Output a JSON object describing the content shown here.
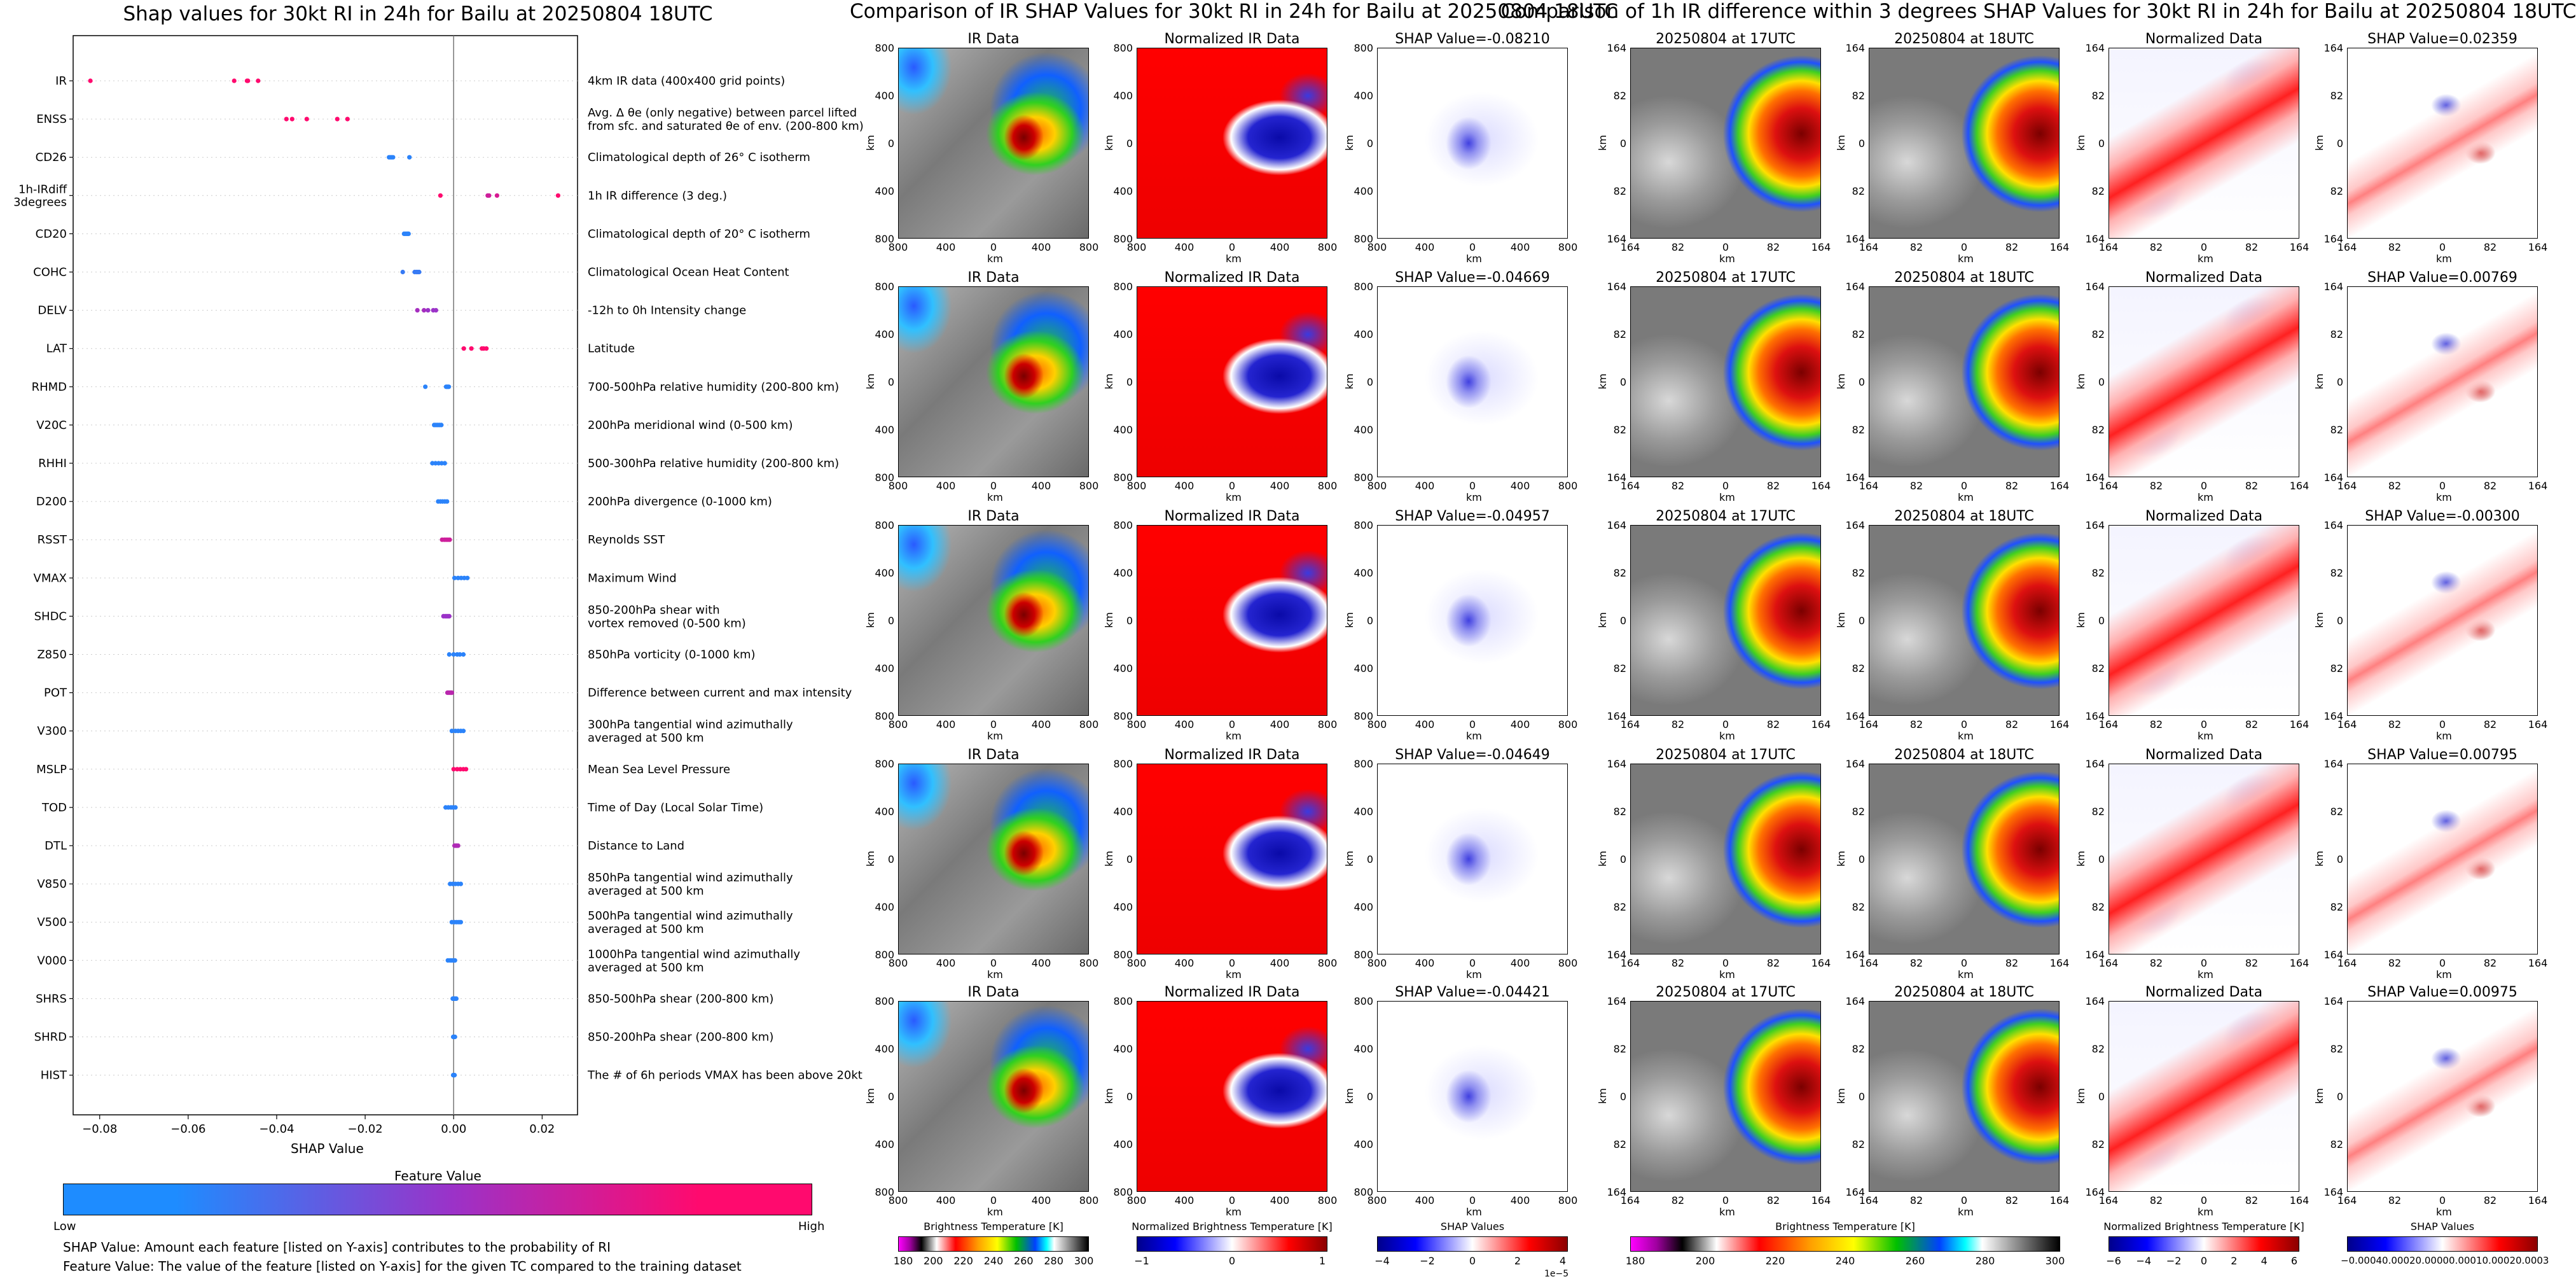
{
  "colors": {
    "low": "#1e8cff",
    "mid": "#9b32c8",
    "high": "#ff0a6e",
    "ir_warm": "#eeeeee",
    "ir_cold": "#b30000",
    "norm_warm": "#ff0000",
    "norm_cold": "#1f1fbf"
  },
  "beeswarm": {
    "title": "Shap values for 30kt RI in 24h for Bailu at 20250804 18UTC",
    "xlabel": "SHAP Value",
    "xticks": [
      "−0.08",
      "−0.06",
      "−0.04",
      "−0.02",
      "0.00",
      "0.02"
    ],
    "colorbar_title": "Feature Value",
    "colorbar_low": "Low",
    "colorbar_high": "High",
    "caption1": "SHAP Value: Amount each feature [listed on Y-axis] contributes to the probability of RI",
    "caption2": "Feature Value: The value of the feature [listed on Y-axis] for the given TC compared to the training dataset",
    "features": [
      {
        "label": "IR",
        "desc": "4km IR data (400x400 grid points)"
      },
      {
        "label": "ENSS",
        "desc": "Avg. Δ θe (only negative) between parcel lifted",
        "desc2": "from sfc. and saturated θe of env. (200-800 km)"
      },
      {
        "label": "CD26",
        "desc": "Climatological depth of 26° C isotherm"
      },
      {
        "label": "1h-IRdiff",
        "label2": "3degrees",
        "desc": "1h IR difference (3 deg.)"
      },
      {
        "label": "CD20",
        "desc": "Climatological depth of 20° C isotherm"
      },
      {
        "label": "COHC",
        "desc": "Climatological Ocean Heat Content"
      },
      {
        "label": "DELV",
        "desc": "-12h to 0h Intensity change"
      },
      {
        "label": "LAT",
        "desc": "Latitude"
      },
      {
        "label": "RHMD",
        "desc": "700-500hPa relative humidity (200-800 km)"
      },
      {
        "label": "V20C",
        "desc": "200hPa meridional wind (0-500 km)"
      },
      {
        "label": "RHHI",
        "desc": "500-300hPa relative humidity (200-800 km)"
      },
      {
        "label": "D200",
        "desc": "200hPa divergence (0-1000 km)"
      },
      {
        "label": "RSST",
        "desc": "Reynolds SST"
      },
      {
        "label": "VMAX",
        "desc": "Maximum Wind"
      },
      {
        "label": "SHDC",
        "desc": "850-200hPa shear with",
        "desc2": "vortex removed (0-500 km)"
      },
      {
        "label": "Z850",
        "desc": "850hPa vorticity (0-1000 km)"
      },
      {
        "label": "POT",
        "desc": "Difference between current and max intensity"
      },
      {
        "label": "V300",
        "desc": "300hPa tangential wind azimuthally",
        "desc2": "averaged at 500 km"
      },
      {
        "label": "MSLP",
        "desc": "Mean Sea Level Pressure"
      },
      {
        "label": "TOD",
        "desc": "Time of Day (Local Solar Time)"
      },
      {
        "label": "DTL",
        "desc": "Distance to Land"
      },
      {
        "label": "V850",
        "desc": "850hPa tangential wind azimuthally",
        "desc2": "averaged at 500 km"
      },
      {
        "label": "V500",
        "desc": "500hPa tangential wind azimuthally",
        "desc2": "averaged at 500 km"
      },
      {
        "label": "V000",
        "desc": "1000hPa tangential wind azimuthally",
        "desc2": "averaged at 500 km"
      },
      {
        "label": "SHRS",
        "desc": "850-500hPa shear (200-800 km)"
      },
      {
        "label": "SHRD",
        "desc": "850-200hPa shear (200-800 km)"
      },
      {
        "label": "HIST",
        "desc": "The # of 6h periods VMAX has been above 20kt"
      }
    ]
  },
  "ir_section": {
    "title": "Comparison of IR SHAP Values for 30kt RI in 24h for Bailu at 20250804 18UTC",
    "col_titles": [
      "IR Data",
      "Normalized IR Data"
    ],
    "shap_titles": [
      "SHAP Value=-0.08210",
      "SHAP Value=-0.04669",
      "SHAP Value=-0.04957",
      "SHAP Value=-0.04649",
      "SHAP Value=-0.04421"
    ],
    "xticks": [
      "800",
      "400",
      "0",
      "400",
      "800"
    ],
    "yticks": [
      "800",
      "400",
      "0",
      "400",
      "800"
    ],
    "axis_label": "km",
    "cb1_label": "Brightness Temperature [K]",
    "cb1_ticks": [
      "180",
      "200",
      "220",
      "240",
      "260",
      "280",
      "300"
    ],
    "cb2_label": "Normalized Brightness Temperature [K]",
    "cb2_ticks": [
      "−1",
      "0",
      "1"
    ],
    "cb3_label": "SHAP Values",
    "cb3_ticks": [
      "−4",
      "−2",
      "0",
      "2",
      "4"
    ],
    "cb3_exp": "1e−5"
  },
  "diff_section": {
    "title": "Comparison of 1h IR difference within 3 degrees SHAP Values for 30kt RI in 24h for Bailu at 20250804 18UTC",
    "col_titles": [
      "20250804 at 17UTC",
      "20250804 at 18UTC",
      "Normalized Data"
    ],
    "shap_titles": [
      "SHAP Value=0.02359",
      "SHAP Value=0.00769",
      "SHAP Value=-0.00300",
      "SHAP Value=0.00795",
      "SHAP Value=0.00975"
    ],
    "xticks": [
      "164",
      "82",
      "0",
      "82",
      "164"
    ],
    "yticks": [
      "164",
      "82",
      "0",
      "82",
      "164"
    ],
    "axis_label": "km",
    "cb1_label": "Brightness Temperature [K]",
    "cb1_ticks": [
      "180",
      "200",
      "220",
      "240",
      "260",
      "280",
      "300"
    ],
    "cb2_label": "Normalized Brightness Temperature [K]",
    "cb2_ticks": [
      "−6",
      "−4",
      "−2",
      "0",
      "2",
      "4",
      "6"
    ],
    "cb3_label": "SHAP Values",
    "cb3_ticks": [
      "−0.0004",
      "0.0002",
      "0.0000",
      "0.0001",
      "0.0002",
      "0.0003"
    ],
    "cb3_tick_text": "−0.00040.00020.00000.00010.00020.0003"
  },
  "chart_data": [
    {
      "type": "scatter",
      "title": "Shap values for 30kt RI in 24h for Bailu at 20250804 18UTC",
      "xlabel": "SHAP Value",
      "xlim": [
        -0.086,
        0.028
      ],
      "grid": false,
      "categories": [
        "IR",
        "ENSS",
        "CD26",
        "1h-IRdiff 3degrees",
        "CD20",
        "COHC",
        "DELV",
        "LAT",
        "RHMD",
        "V20C",
        "RHHI",
        "D200",
        "RSST",
        "VMAX",
        "SHDC",
        "Z850",
        "POT",
        "V300",
        "MSLP",
        "TOD",
        "DTL",
        "V850",
        "V500",
        "V000",
        "SHRS",
        "SHRD",
        "HIST"
      ],
      "series": [
        {
          "feature": "IR",
          "x": [
            -0.0821,
            -0.0496,
            -0.0467,
            -0.0465,
            -0.0442
          ],
          "c": [
            1,
            1,
            1,
            1,
            1
          ]
        },
        {
          "feature": "ENSS",
          "x": [
            -0.0378,
            -0.0365,
            -0.0332,
            -0.0263,
            -0.024
          ],
          "c": [
            1,
            1,
            1,
            1,
            1
          ]
        },
        {
          "feature": "CD26",
          "x": [
            -0.0146,
            -0.0143,
            -0.014,
            -0.0137,
            -0.01
          ],
          "c": [
            0.05,
            0.05,
            0.05,
            0.05,
            0.05
          ]
        },
        {
          "feature": "1h-IRdiff 3degrees",
          "x": [
            -0.003,
            0.0077,
            0.008,
            0.0098,
            0.0236
          ],
          "c": [
            1,
            0.75,
            0.75,
            0.8,
            1
          ]
        },
        {
          "feature": "CD20",
          "x": [
            -0.0112,
            -0.0109,
            -0.0106,
            -0.0104,
            -0.0102
          ],
          "c": [
            0.05,
            0.05,
            0.05,
            0.05,
            0.05
          ]
        },
        {
          "feature": "COHC",
          "x": [
            -0.0115,
            -0.0088,
            -0.0084,
            -0.0081,
            -0.0078
          ],
          "c": [
            0.1,
            0.1,
            0.1,
            0.1,
            0.1
          ]
        },
        {
          "feature": "DELV",
          "x": [
            -0.0082,
            -0.0067,
            -0.0058,
            -0.0046,
            -0.004
          ],
          "c": [
            0.55,
            0.55,
            0.5,
            0.5,
            0.5
          ]
        },
        {
          "feature": "LAT",
          "x": [
            0.0023,
            0.004,
            0.0064,
            0.0068,
            0.0074
          ],
          "c": [
            1,
            1,
            1,
            1,
            1
          ]
        },
        {
          "feature": "RHMD",
          "x": [
            -0.0064,
            -0.0017,
            -0.0015,
            -0.0013,
            -0.0011
          ],
          "c": [
            0.05,
            0.05,
            0.05,
            0.05,
            0.05
          ]
        },
        {
          "feature": "V20C",
          "x": [
            -0.0044,
            -0.004,
            -0.0036,
            -0.0032,
            -0.0028
          ],
          "c": [
            0.05,
            0.05,
            0.05,
            0.05,
            0.05
          ]
        },
        {
          "feature": "RHHI",
          "x": [
            -0.0048,
            -0.0041,
            -0.0034,
            -0.0027,
            -0.002
          ],
          "c": [
            0.05,
            0.05,
            0.05,
            0.05,
            0.05
          ]
        },
        {
          "feature": "D200",
          "x": [
            -0.0035,
            -0.003,
            -0.0025,
            -0.002,
            -0.0015
          ],
          "c": [
            0.05,
            0.05,
            0.05,
            0.05,
            0.05
          ]
        },
        {
          "feature": "RSST",
          "x": [
            -0.0026,
            -0.0021,
            -0.0017,
            -0.0013,
            -0.0009
          ],
          "c": [
            0.75,
            0.75,
            0.75,
            0.75,
            0.75
          ]
        },
        {
          "feature": "VMAX",
          "x": [
            0.0002,
            0.001,
            0.0017,
            0.0024,
            0.0031
          ],
          "c": [
            0.05,
            0.05,
            0.05,
            0.05,
            0.05
          ]
        },
        {
          "feature": "SHDC",
          "x": [
            -0.0023,
            -0.0019,
            -0.0016,
            -0.0013,
            -0.001
          ],
          "c": [
            0.5,
            0.5,
            0.5,
            0.5,
            0.5
          ]
        },
        {
          "feature": "Z850",
          "x": [
            -0.001,
            0.0,
            0.0008,
            0.0014,
            0.0022
          ],
          "c": [
            0.05,
            0.05,
            0.05,
            0.05,
            0.05
          ]
        },
        {
          "feature": "POT",
          "x": [
            -0.0014,
            -0.0011,
            -0.0008,
            -0.0006,
            -0.0004
          ],
          "c": [
            0.65,
            0.65,
            0.65,
            0.65,
            0.65
          ]
        },
        {
          "feature": "V300",
          "x": [
            -0.0004,
            0.0004,
            0.001,
            0.0016,
            0.0022
          ],
          "c": [
            0.05,
            0.05,
            0.05,
            0.05,
            0.05
          ]
        },
        {
          "feature": "MSLP",
          "x": [
            0.0,
            0.0008,
            0.0015,
            0.0022,
            0.0028
          ],
          "c": [
            1,
            1,
            1,
            1,
            1
          ]
        },
        {
          "feature": "TOD",
          "x": [
            -0.0018,
            -0.0012,
            -0.0006,
            -0.0001,
            0.0004
          ],
          "c": [
            0.05,
            0.05,
            0.05,
            0.05,
            0.05
          ]
        },
        {
          "feature": "DTL",
          "x": [
            0.0002,
            0.0004,
            0.0006,
            0.0008,
            0.001
          ],
          "c": [
            0.6,
            0.6,
            0.6,
            0.6,
            0.6
          ]
        },
        {
          "feature": "V850",
          "x": [
            -0.0008,
            -0.0002,
            0.0004,
            0.001,
            0.0016
          ],
          "c": [
            0.05,
            0.05,
            0.05,
            0.05,
            0.05
          ]
        },
        {
          "feature": "V500",
          "x": [
            -0.0004,
            0.0002,
            0.0007,
            0.0012,
            0.0016
          ],
          "c": [
            0.05,
            0.05,
            0.05,
            0.05,
            0.05
          ]
        },
        {
          "feature": "V000",
          "x": [
            -0.0013,
            -0.0008,
            -0.0004,
            0.0,
            0.0003
          ],
          "c": [
            0.05,
            0.05,
            0.05,
            0.05,
            0.05
          ]
        },
        {
          "feature": "SHRS",
          "x": [
            -0.0002,
            0.0,
            0.0002,
            0.0004,
            0.0006
          ],
          "c": [
            0.05,
            0.05,
            0.05,
            0.05,
            0.05
          ]
        },
        {
          "feature": "SHRD",
          "x": [
            -0.0001,
            0.0,
            0.0001,
            0.0002,
            0.0003
          ],
          "c": [
            0.05,
            0.05,
            0.05,
            0.05,
            0.05
          ]
        },
        {
          "feature": "HIST",
          "x": [
            -0.0001,
            0.0,
            0.0001,
            0.0001,
            0.0002
          ],
          "c": [
            0.05,
            0.05,
            0.05,
            0.05,
            0.05
          ]
        }
      ]
    }
  ]
}
